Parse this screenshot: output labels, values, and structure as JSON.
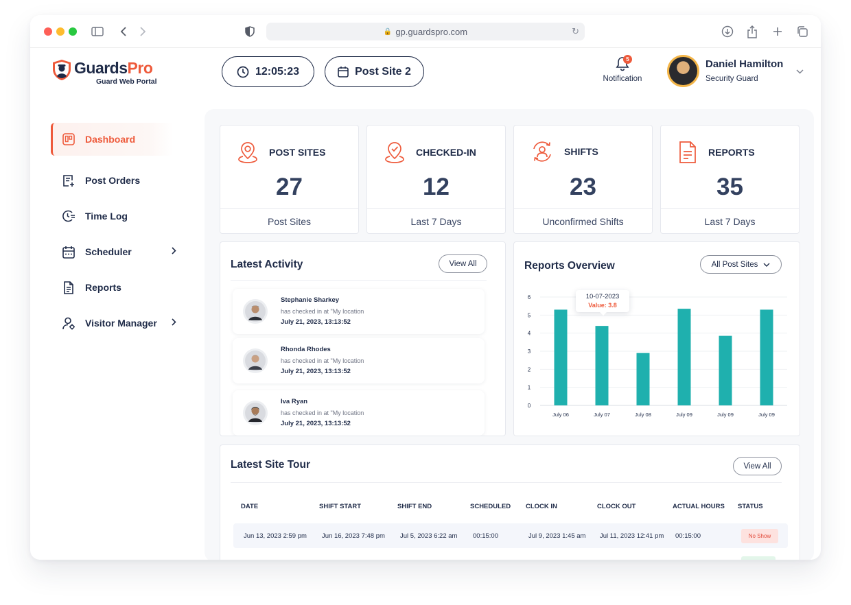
{
  "browser": {
    "url": "gp.guardspro.com"
  },
  "brand": {
    "name_part1": "Guards",
    "name_part2": "Pro",
    "subtitle": "Guard Web Portal",
    "accent": "#ee5a3b",
    "navy": "#1f2b48"
  },
  "header": {
    "clock": "12:05:23",
    "post_site": "Post Site 2",
    "notification_label": "Notification",
    "notification_count": "5",
    "user_name": "Daniel Hamilton",
    "user_role": "Security Guard"
  },
  "sidebar": {
    "items": [
      {
        "label": "Dashboard",
        "icon": "dashboard-icon",
        "active": true
      },
      {
        "label": "Post Orders",
        "icon": "post-orders-icon"
      },
      {
        "label": "Time Log",
        "icon": "time-log-icon"
      },
      {
        "label": "Scheduler",
        "icon": "calendar-icon",
        "has_submenu": true
      },
      {
        "label": "Reports",
        "icon": "document-icon"
      },
      {
        "label": "Visitor Manager",
        "icon": "visitor-icon",
        "has_submenu": true
      }
    ]
  },
  "stats": [
    {
      "title": "POST SITES",
      "value": "27",
      "footer": "Post Sites",
      "icon": "location-pin-icon"
    },
    {
      "title": "CHECKED-IN",
      "value": "12",
      "footer": "Last 7 Days",
      "icon": "checked-pin-icon"
    },
    {
      "title": "SHIFTS",
      "value": "23",
      "footer": "Unconfirmed Shifts",
      "icon": "shift-cycle-icon"
    },
    {
      "title": "REPORTS",
      "value": "35",
      "footer": "Last 7 Days",
      "icon": "report-icon"
    }
  ],
  "latest_activity": {
    "title": "Latest Activity",
    "view_all": "View All",
    "items": [
      {
        "name": "Stephanie Sharkey",
        "desc": "has checked in at \"My location",
        "time": "July 21, 2023, 13:13:52"
      },
      {
        "name": "Rhonda Rhodes",
        "desc": "has checked in at \"My location",
        "time": "July 21, 2023, 13:13:52"
      },
      {
        "name": "Iva Ryan",
        "desc": "has checked in at \"My location",
        "time": "July 21, 2023, 13:13:52"
      }
    ]
  },
  "reports_overview": {
    "title": "Reports Overview",
    "filter": "All Post Sites",
    "tooltip_date": "10-07-2023",
    "tooltip_value": "Value: 3.8"
  },
  "chart_data": {
    "type": "bar",
    "categories": [
      "July 06",
      "July 07",
      "July 08",
      "July 09",
      "July 09",
      "July 09"
    ],
    "values": [
      5.3,
      4.4,
      2.9,
      5.35,
      3.85,
      5.3
    ],
    "ylim": [
      0,
      6
    ],
    "yticks": [
      "0",
      "1",
      "2",
      "3",
      "4",
      "5",
      "6"
    ],
    "grid": true,
    "bar_color": "#1fb0ae"
  },
  "site_tour": {
    "title": "Latest Site Tour",
    "view_all": "View All",
    "columns": [
      "DATE",
      "SHIFT START",
      "SHIFT END",
      "SCHEDULED",
      "CLOCK IN",
      "CLOCK OUT",
      "ACTUAL HOURS",
      "STATUS"
    ],
    "rows": [
      [
        "Jun 13, 2023 2:59 pm",
        "Jun 16, 2023 7:48 pm",
        "Jul 5, 2023 6:22 am",
        "00:15:00",
        "Jul 9, 2023 1:45 am",
        "Jul 11, 2023 12:41 pm",
        "00:15:00",
        "No Show"
      ]
    ]
  }
}
